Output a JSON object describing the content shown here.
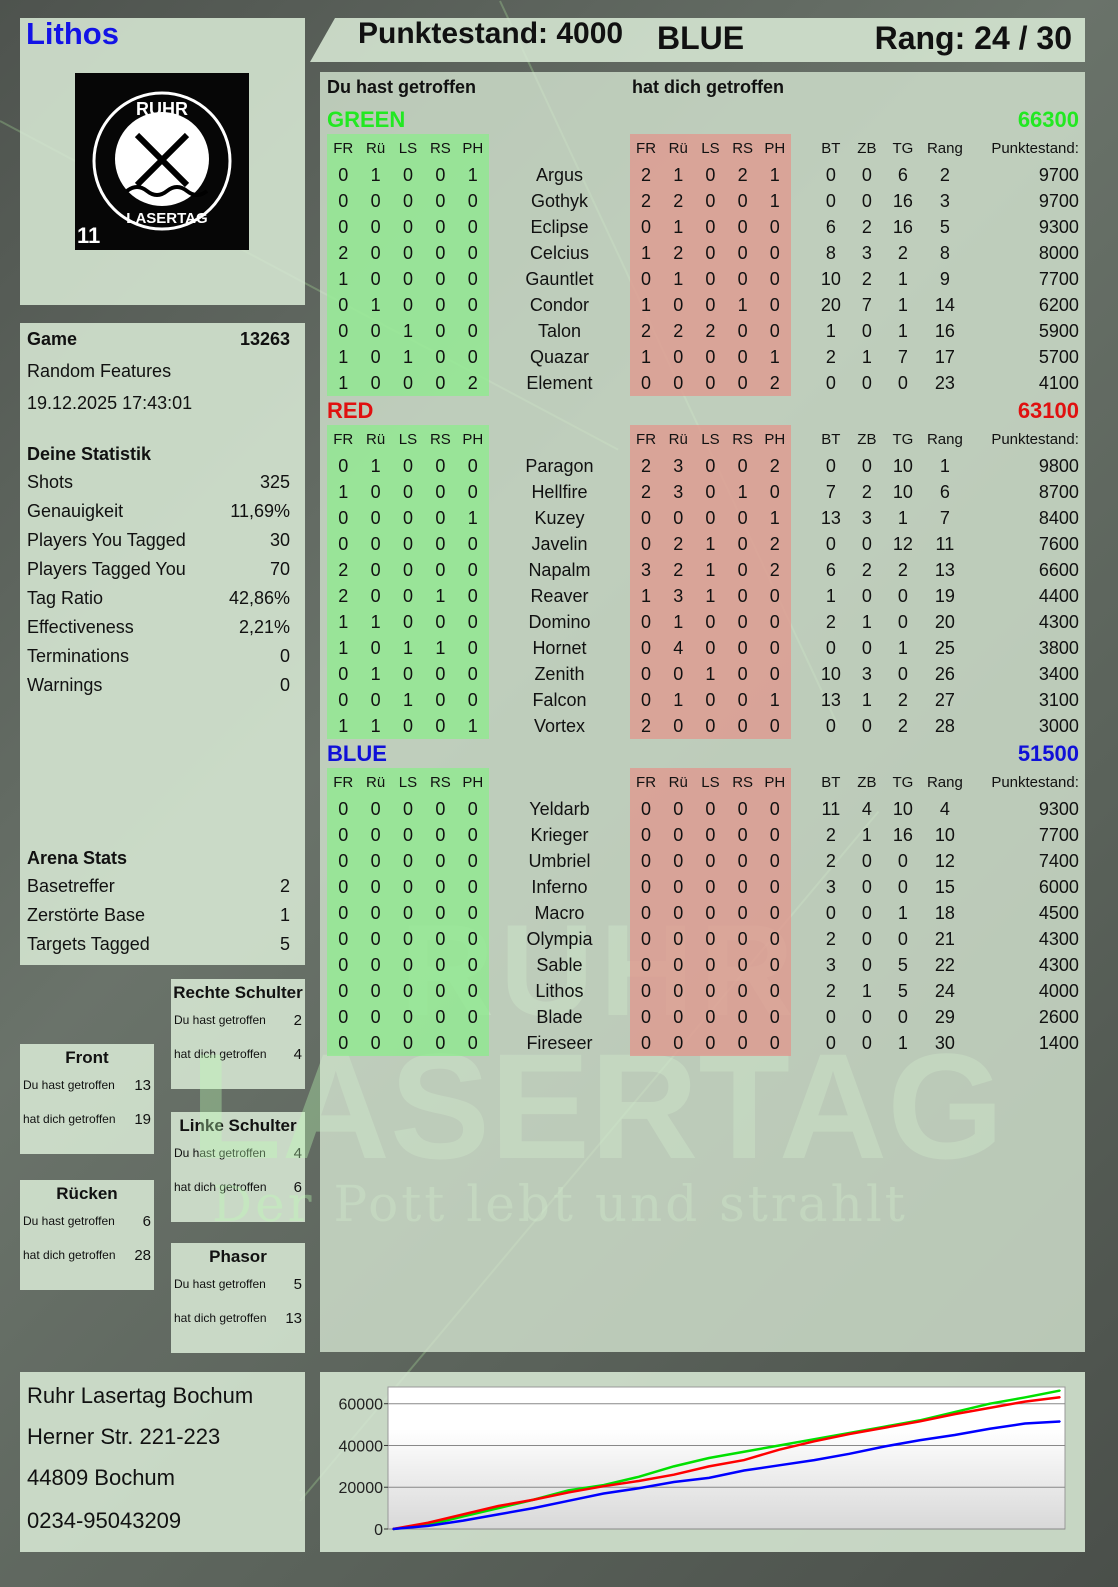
{
  "header": {
    "player": "Lithos",
    "score_label": "Punktestand: 4000",
    "team": "BLUE",
    "rank_label": "Rang: 24 / 30"
  },
  "logo": {
    "text_top": "RUHR",
    "text_bottom": "LASERTAG",
    "badge": "11"
  },
  "watermark": {
    "line1": "RUHR",
    "line2": "LASERTAG",
    "line3": "Der Pott lebt und strahlt"
  },
  "game": {
    "label": "Game",
    "id": "13263",
    "mode": "Random Features",
    "datetime": "19.12.2025 17:43:01"
  },
  "stats": {
    "title": "Deine Statistik",
    "items": [
      {
        "label": "Shots",
        "value": "325"
      },
      {
        "label": "Genauigkeit",
        "value": "11,69%"
      },
      {
        "label": "Players You Tagged",
        "value": "30"
      },
      {
        "label": "Players Tagged You",
        "value": "70"
      },
      {
        "label": "Tag Ratio",
        "value": "42,86%"
      },
      {
        "label": "Effectiveness",
        "value": "2,21%"
      },
      {
        "label": "Terminations",
        "value": "0"
      },
      {
        "label": "Warnings",
        "value": "0"
      }
    ]
  },
  "arena": {
    "title": "Arena Stats",
    "items": [
      {
        "label": "Basetreffer",
        "value": "2"
      },
      {
        "label": "Zerstörte Base",
        "value": "1"
      },
      {
        "label": "Targets Tagged",
        "value": "5"
      }
    ]
  },
  "zones": [
    {
      "title": "Rechte Schulter",
      "hit_label": "Du hast getroffen",
      "hit": "2",
      "got_label": "hat dich getroffen",
      "got": "4"
    },
    {
      "title": "Front",
      "hit_label": "Du hast getroffen",
      "hit": "13",
      "got_label": "hat dich getroffen",
      "got": "19"
    },
    {
      "title": "Linke Schulter",
      "hit_label": "Du hast getroffen",
      "hit": "4",
      "got_label": "hat dich getroffen",
      "got": "6"
    },
    {
      "title": "Rücken",
      "hit_label": "Du hast getroffen",
      "hit": "6",
      "got_label": "hat dich getroffen",
      "got": "28"
    },
    {
      "title": "Phasor",
      "hit_label": "Du hast getroffen",
      "hit": "5",
      "got_label": "hat dich getroffen",
      "got": "13"
    }
  ],
  "table": {
    "you_hit_label": "Du hast getroffen",
    "hit_you_label": "hat dich getroffen",
    "columns": [
      "FR",
      "Rü",
      "LS",
      "RS",
      "PH",
      "",
      "FR",
      "Rü",
      "LS",
      "RS",
      "PH",
      "",
      "BT",
      "ZB",
      "TG",
      "Rang",
      "Punktestand:"
    ],
    "teams": [
      {
        "name": "GREEN",
        "total": "66300",
        "color": "#22e822",
        "rows": [
          [
            "0",
            "1",
            "0",
            "0",
            "1",
            "Argus",
            "2",
            "1",
            "0",
            "2",
            "1",
            "0",
            "0",
            "6",
            "2",
            "9700"
          ],
          [
            "0",
            "0",
            "0",
            "0",
            "0",
            "Gothyk",
            "2",
            "2",
            "0",
            "0",
            "1",
            "0",
            "0",
            "16",
            "3",
            "9700"
          ],
          [
            "0",
            "0",
            "0",
            "0",
            "0",
            "Eclipse",
            "0",
            "1",
            "0",
            "0",
            "0",
            "6",
            "2",
            "16",
            "5",
            "9300"
          ],
          [
            "2",
            "0",
            "0",
            "0",
            "0",
            "Celcius",
            "1",
            "2",
            "0",
            "0",
            "0",
            "8",
            "3",
            "2",
            "8",
            "8000"
          ],
          [
            "1",
            "0",
            "0",
            "0",
            "0",
            "Gauntlet",
            "0",
            "1",
            "0",
            "0",
            "0",
            "10",
            "2",
            "1",
            "9",
            "7700"
          ],
          [
            "0",
            "1",
            "0",
            "0",
            "0",
            "Condor",
            "1",
            "0",
            "0",
            "1",
            "0",
            "20",
            "7",
            "1",
            "14",
            "6200"
          ],
          [
            "0",
            "0",
            "1",
            "0",
            "0",
            "Talon",
            "2",
            "2",
            "2",
            "0",
            "0",
            "1",
            "0",
            "1",
            "16",
            "5900"
          ],
          [
            "1",
            "0",
            "1",
            "0",
            "0",
            "Quazar",
            "1",
            "0",
            "0",
            "0",
            "1",
            "2",
            "1",
            "7",
            "17",
            "5700"
          ],
          [
            "1",
            "0",
            "0",
            "0",
            "2",
            "Element",
            "0",
            "0",
            "0",
            "0",
            "2",
            "0",
            "0",
            "0",
            "23",
            "4100"
          ]
        ]
      },
      {
        "name": "RED",
        "total": "63100",
        "color": "#e01010",
        "rows": [
          [
            "0",
            "1",
            "0",
            "0",
            "0",
            "Paragon",
            "2",
            "3",
            "0",
            "0",
            "2",
            "0",
            "0",
            "10",
            "1",
            "9800"
          ],
          [
            "1",
            "0",
            "0",
            "0",
            "0",
            "Hellfire",
            "2",
            "3",
            "0",
            "1",
            "0",
            "7",
            "2",
            "10",
            "6",
            "8700"
          ],
          [
            "0",
            "0",
            "0",
            "0",
            "1",
            "Kuzey",
            "0",
            "0",
            "0",
            "0",
            "1",
            "13",
            "3",
            "1",
            "7",
            "8400"
          ],
          [
            "0",
            "0",
            "0",
            "0",
            "0",
            "Javelin",
            "0",
            "2",
            "1",
            "0",
            "2",
            "0",
            "0",
            "12",
            "11",
            "7600"
          ],
          [
            "2",
            "0",
            "0",
            "0",
            "0",
            "Napalm",
            "3",
            "2",
            "1",
            "0",
            "2",
            "6",
            "2",
            "2",
            "13",
            "6600"
          ],
          [
            "2",
            "0",
            "0",
            "1",
            "0",
            "Reaver",
            "1",
            "3",
            "1",
            "0",
            "0",
            "1",
            "0",
            "0",
            "19",
            "4400"
          ],
          [
            "1",
            "1",
            "0",
            "0",
            "0",
            "Domino",
            "0",
            "1",
            "0",
            "0",
            "0",
            "2",
            "1",
            "0",
            "20",
            "4300"
          ],
          [
            "1",
            "0",
            "1",
            "1",
            "0",
            "Hornet",
            "0",
            "4",
            "0",
            "0",
            "0",
            "0",
            "0",
            "1",
            "25",
            "3800"
          ],
          [
            "0",
            "1",
            "0",
            "0",
            "0",
            "Zenith",
            "0",
            "0",
            "1",
            "0",
            "0",
            "10",
            "3",
            "0",
            "26",
            "3400"
          ],
          [
            "0",
            "0",
            "1",
            "0",
            "0",
            "Falcon",
            "0",
            "1",
            "0",
            "0",
            "1",
            "13",
            "1",
            "2",
            "27",
            "3100"
          ],
          [
            "1",
            "1",
            "0",
            "0",
            "1",
            "Vortex",
            "2",
            "0",
            "0",
            "0",
            "0",
            "0",
            "0",
            "2",
            "28",
            "3000"
          ]
        ]
      },
      {
        "name": "BLUE",
        "total": "51500",
        "color": "#1010d8",
        "rows": [
          [
            "0",
            "0",
            "0",
            "0",
            "0",
            "Yeldarb",
            "0",
            "0",
            "0",
            "0",
            "0",
            "11",
            "4",
            "10",
            "4",
            "9300"
          ],
          [
            "0",
            "0",
            "0",
            "0",
            "0",
            "Krieger",
            "0",
            "0",
            "0",
            "0",
            "0",
            "2",
            "1",
            "16",
            "10",
            "7700"
          ],
          [
            "0",
            "0",
            "0",
            "0",
            "0",
            "Umbriel",
            "0",
            "0",
            "0",
            "0",
            "0",
            "2",
            "0",
            "0",
            "12",
            "7400"
          ],
          [
            "0",
            "0",
            "0",
            "0",
            "0",
            "Inferno",
            "0",
            "0",
            "0",
            "0",
            "0",
            "3",
            "0",
            "0",
            "15",
            "6000"
          ],
          [
            "0",
            "0",
            "0",
            "0",
            "0",
            "Macro",
            "0",
            "0",
            "0",
            "0",
            "0",
            "0",
            "0",
            "1",
            "18",
            "4500"
          ],
          [
            "0",
            "0",
            "0",
            "0",
            "0",
            "Olympia",
            "0",
            "0",
            "0",
            "0",
            "0",
            "2",
            "0",
            "0",
            "21",
            "4300"
          ],
          [
            "0",
            "0",
            "0",
            "0",
            "0",
            "Sable",
            "0",
            "0",
            "0",
            "0",
            "0",
            "3",
            "0",
            "5",
            "22",
            "4300"
          ],
          [
            "0",
            "0",
            "0",
            "0",
            "0",
            "Lithos",
            "0",
            "0",
            "0",
            "0",
            "0",
            "2",
            "1",
            "5",
            "24",
            "4000"
          ],
          [
            "0",
            "0",
            "0",
            "0",
            "0",
            "Blade",
            "0",
            "0",
            "0",
            "0",
            "0",
            "0",
            "0",
            "0",
            "29",
            "2600"
          ],
          [
            "0",
            "0",
            "0",
            "0",
            "0",
            "Fireseer",
            "0",
            "0",
            "0",
            "0",
            "0",
            "0",
            "0",
            "1",
            "30",
            "1400"
          ]
        ]
      }
    ]
  },
  "address": {
    "name": "Ruhr Lasertag Bochum",
    "street": "Herner Str. 221-223",
    "city": "44809 Bochum",
    "phone": "0234-95043209"
  },
  "chart_data": {
    "type": "line",
    "ylim": [
      0,
      68000
    ],
    "yticks": [
      "0",
      "20000",
      "40000",
      "60000"
    ],
    "grid": true,
    "series": [
      {
        "color": "#00e000",
        "values": [
          0,
          2000,
          6000,
          10000,
          14000,
          18500,
          21000,
          25000,
          30000,
          34000,
          37000,
          40000,
          43000,
          46000,
          49000,
          52000,
          56000,
          60000,
          63000,
          66300
        ]
      },
      {
        "color": "#ff0000",
        "values": [
          0,
          3000,
          7000,
          11000,
          14000,
          17500,
          20500,
          23000,
          26000,
          30000,
          33000,
          38000,
          42000,
          45500,
          48500,
          51500,
          55000,
          58000,
          61000,
          63100
        ]
      },
      {
        "color": "#0000ff",
        "values": [
          0,
          1500,
          4000,
          7000,
          10000,
          13500,
          17000,
          19500,
          22500,
          24500,
          28000,
          30500,
          33000,
          36000,
          39500,
          42500,
          45000,
          48000,
          50500,
          51500
        ]
      }
    ]
  }
}
